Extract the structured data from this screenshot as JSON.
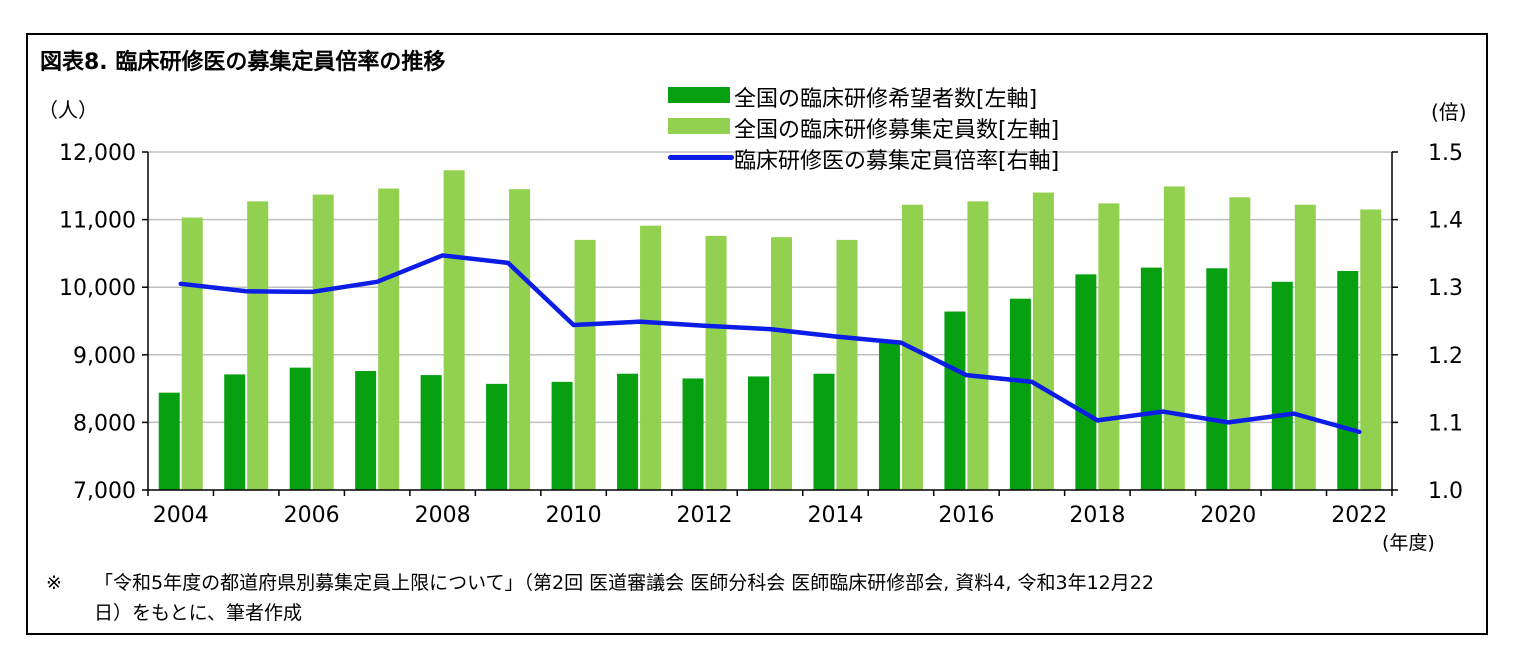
{
  "title": "図表8.  臨床研修医の募集定員倍率の推移",
  "left_unit": "（人）",
  "right_unit": "(倍)",
  "x_unit": "(年度)",
  "note": {
    "mark": "※",
    "line1": "「令和5年度の都道府県別募集定員上限について」（第2回  医道審議会  医師分科会  医師臨床研修部会,  資料4,  令和3年12月22",
    "line2": "日）をもとに、筆者作成"
  },
  "colors": {
    "applicants": "#06a010",
    "capacity": "#92d050",
    "ratio": "#0b1de6",
    "grid": "#bfbfbf"
  },
  "chart_data": {
    "type": "bar",
    "categories": [
      "2004",
      "2005",
      "2006",
      "2007",
      "2008",
      "2009",
      "2010",
      "2011",
      "2012",
      "2013",
      "2014",
      "2015",
      "2016",
      "2017",
      "2018",
      "2019",
      "2020",
      "2021",
      "2022"
    ],
    "x_tick_labels": [
      "2004",
      "2006",
      "2008",
      "2010",
      "2012",
      "2014",
      "2016",
      "2018",
      "2020",
      "2022"
    ],
    "y_left": {
      "min": 7000,
      "max": 12000,
      "step": 1000,
      "tick_labels": [
        "7,000",
        "8,000",
        "9,000",
        "10,000",
        "11,000",
        "12,000"
      ]
    },
    "y_right": {
      "min": 1.0,
      "max": 1.5,
      "step": 0.1,
      "tick_labels": [
        "1.0",
        "1.1",
        "1.2",
        "1.3",
        "1.4",
        "1.5"
      ]
    },
    "series": [
      {
        "name": "全国の臨床研修希望者数[左軸]",
        "axis": "left",
        "kind": "bar",
        "values": [
          8440,
          8710,
          8810,
          8760,
          8700,
          8570,
          8600,
          8720,
          8650,
          8680,
          8720,
          9180,
          9640,
          9830,
          10190,
          10290,
          10280,
          10080,
          10240
        ]
      },
      {
        "name": "全国の臨床研修募集定員数[左軸]",
        "axis": "left",
        "kind": "bar",
        "values": [
          11030,
          11270,
          11370,
          11460,
          11730,
          11450,
          10700,
          10910,
          10760,
          10740,
          10700,
          11220,
          11270,
          11400,
          11240,
          11490,
          11330,
          11220,
          11150
        ]
      },
      {
        "name": "臨床研修医の募集定員倍率[右軸]",
        "axis": "right",
        "kind": "line",
        "values": [
          1.305,
          1.294,
          1.293,
          1.308,
          1.347,
          1.336,
          1.244,
          1.249,
          1.243,
          1.238,
          1.227,
          1.218,
          1.17,
          1.16,
          1.103,
          1.116,
          1.1,
          1.113,
          1.086
        ]
      }
    ],
    "grid": true,
    "legend_position": "top-center"
  }
}
